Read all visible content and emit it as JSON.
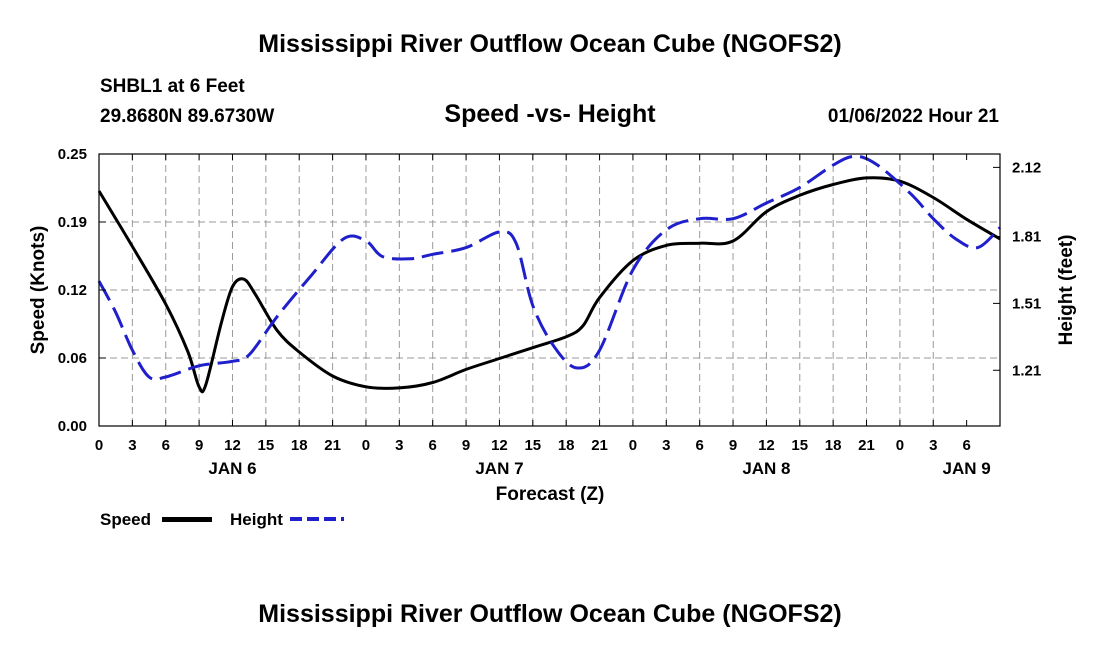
{
  "page": {
    "title": "Mississippi River Outflow Ocean Cube (NGOFS2)",
    "title_repeat": "Mississippi River Outflow Ocean Cube (NGOFS2)"
  },
  "header": {
    "station": "SHBL1 at 6 Feet",
    "coords": "29.8680N  89.6730W",
    "subtitle": "Speed -vs- Height",
    "datetime": "01/06/2022 Hour 21"
  },
  "colors": {
    "speed": "#000000",
    "height": "#1f1fcc",
    "grid": "#9a9a9a"
  },
  "chart_data": {
    "type": "line",
    "xlabel": "Forecast (Z)",
    "ylabel_left": "Speed (Knots)",
    "ylabel_right": "Height (feet)",
    "x_range_hours": [
      0,
      81
    ],
    "y_left_range": [
      0.0,
      0.25
    ],
    "y_right_range": [
      0.96,
      2.18
    ],
    "y_left_ticks": [
      {
        "v": 0.0,
        "label": "0.00"
      },
      {
        "v": 0.0625,
        "label": "0.06"
      },
      {
        "v": 0.125,
        "label": "0.12"
      },
      {
        "v": 0.1875,
        "label": "0.19"
      },
      {
        "v": 0.25,
        "label": "0.25"
      }
    ],
    "y_right_ticks": [
      {
        "v": 1.21,
        "label": "1.21"
      },
      {
        "v": 1.51,
        "label": "1.51"
      },
      {
        "v": 1.81,
        "label": "1.81"
      },
      {
        "v": 2.12,
        "label": "2.12"
      }
    ],
    "x_tick_labels": [
      "0",
      "3",
      "6",
      "9",
      "12",
      "15",
      "18",
      "21",
      "0",
      "3",
      "6",
      "9",
      "12",
      "15",
      "18",
      "21",
      "0",
      "3",
      "6",
      "9",
      "12",
      "15",
      "18",
      "21",
      "0",
      "3",
      "6"
    ],
    "day_labels": [
      {
        "hour": 12,
        "label": "JAN 6"
      },
      {
        "hour": 36,
        "label": "JAN 7"
      },
      {
        "hour": 60,
        "label": "JAN 8"
      },
      {
        "hour": 78,
        "label": "JAN 9"
      }
    ],
    "series": [
      {
        "name": "Speed",
        "axis": "left",
        "points": [
          [
            0,
            0.216
          ],
          [
            3,
            0.165
          ],
          [
            6,
            0.112
          ],
          [
            8,
            0.068
          ],
          [
            9,
            0.036
          ],
          [
            9.6,
            0.038
          ],
          [
            11,
            0.095
          ],
          [
            12,
            0.128
          ],
          [
            13,
            0.135
          ],
          [
            14,
            0.122
          ],
          [
            16,
            0.088
          ],
          [
            18,
            0.068
          ],
          [
            21,
            0.046
          ],
          [
            24,
            0.036
          ],
          [
            27,
            0.035
          ],
          [
            30,
            0.04
          ],
          [
            33,
            0.052
          ],
          [
            36,
            0.062
          ],
          [
            39,
            0.072
          ],
          [
            42,
            0.082
          ],
          [
            43.5,
            0.092
          ],
          [
            45,
            0.118
          ],
          [
            48,
            0.152
          ],
          [
            51,
            0.166
          ],
          [
            54,
            0.168
          ],
          [
            57,
            0.17
          ],
          [
            60,
            0.197
          ],
          [
            63,
            0.212
          ],
          [
            66,
            0.222
          ],
          [
            69,
            0.228
          ],
          [
            72,
            0.225
          ],
          [
            75,
            0.21
          ],
          [
            78,
            0.19
          ],
          [
            81,
            0.172
          ]
        ]
      },
      {
        "name": "Height",
        "axis": "right",
        "points": [
          [
            0,
            1.61
          ],
          [
            1.5,
            1.47
          ],
          [
            3,
            1.3
          ],
          [
            4.5,
            1.18
          ],
          [
            6,
            1.18
          ],
          [
            9,
            1.23
          ],
          [
            12,
            1.25
          ],
          [
            13.5,
            1.28
          ],
          [
            16,
            1.45
          ],
          [
            19,
            1.63
          ],
          [
            22,
            1.8
          ],
          [
            24,
            1.79
          ],
          [
            25.5,
            1.72
          ],
          [
            28,
            1.71
          ],
          [
            30,
            1.73
          ],
          [
            33,
            1.76
          ],
          [
            36,
            1.83
          ],
          [
            37.5,
            1.78
          ],
          [
            39,
            1.5
          ],
          [
            41,
            1.31
          ],
          [
            43,
            1.22
          ],
          [
            45,
            1.3
          ],
          [
            48,
            1.66
          ],
          [
            51,
            1.84
          ],
          [
            54,
            1.89
          ],
          [
            57,
            1.89
          ],
          [
            60,
            1.96
          ],
          [
            63,
            2.03
          ],
          [
            66,
            2.13
          ],
          [
            68,
            2.17
          ],
          [
            70,
            2.13
          ],
          [
            73,
            2
          ],
          [
            75,
            1.89
          ],
          [
            77,
            1.8
          ],
          [
            79,
            1.76
          ],
          [
            81,
            1.85
          ]
        ]
      }
    ],
    "legend": [
      {
        "label": "Speed",
        "series": "Speed"
      },
      {
        "label": "Height",
        "series": "Height"
      }
    ],
    "grid": true
  }
}
